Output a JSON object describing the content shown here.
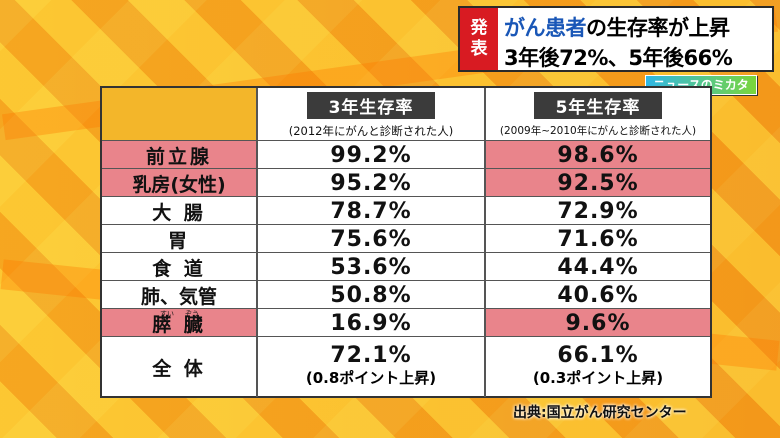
{
  "headline": {
    "badge_line1": "発",
    "badge_line2": "表",
    "line1_highlight": "がん患者",
    "line1_rest": "の生存率が上昇",
    "line2": "3年後72%、5年後66%"
  },
  "program_logo": "ニュースのミカタ",
  "table": {
    "col3": {
      "title": "3年生存率",
      "sub": "(2012年にがんと診断された人)"
    },
    "col5": {
      "title": "5年生存率",
      "sub": "(2009年~2010年にがんと診断された人)"
    },
    "rows": [
      {
        "label": "前立腺",
        "y3": "99.2%",
        "y5": "98.6%",
        "highlight": true
      },
      {
        "label": "乳房(女性)",
        "y3": "95.2%",
        "y5": "92.5%",
        "highlight": true
      },
      {
        "label": "大 腸",
        "y3": "78.7%",
        "y5": "72.9%",
        "highlight": false
      },
      {
        "label": "胃",
        "y3": "75.6%",
        "y5": "71.6%",
        "highlight": false
      },
      {
        "label": "食 道",
        "y3": "53.6%",
        "y5": "44.4%",
        "highlight": false
      },
      {
        "label": "肺、気管",
        "y3": "50.8%",
        "y5": "40.6%",
        "highlight": false
      },
      {
        "label": "膵 臓",
        "ruby1": "すい",
        "ruby2": "ぞう",
        "y3": "16.9%",
        "y5": "9.6%",
        "highlight": true
      }
    ],
    "total": {
      "label": "全 体",
      "y3": "72.1%",
      "y3_note": "(0.8ポイント上昇)",
      "y5": "66.1%",
      "y5_note": "(0.3ポイント上昇)"
    }
  },
  "source": "出典:国立がん研究センター",
  "colors": {
    "highlight": "#e9848b",
    "badge": "#d81b22",
    "headline_blue": "#1a57b7"
  }
}
